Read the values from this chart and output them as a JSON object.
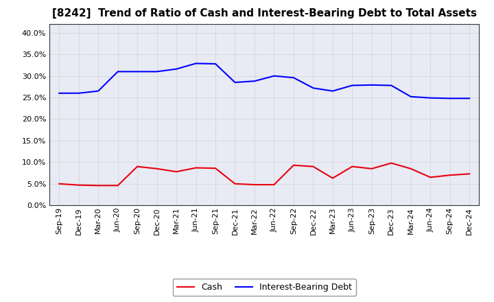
{
  "title": "[8242]  Trend of Ratio of Cash and Interest-Bearing Debt to Total Assets",
  "x_labels": [
    "Sep-19",
    "Dec-19",
    "Mar-20",
    "Jun-20",
    "Sep-20",
    "Dec-20",
    "Mar-21",
    "Jun-21",
    "Sep-21",
    "Dec-21",
    "Mar-22",
    "Jun-22",
    "Sep-22",
    "Dec-22",
    "Mar-23",
    "Jun-23",
    "Sep-23",
    "Dec-23",
    "Mar-24",
    "Jun-24",
    "Sep-24",
    "Dec-24"
  ],
  "cash": [
    0.05,
    0.047,
    0.046,
    0.046,
    0.09,
    0.085,
    0.078,
    0.087,
    0.086,
    0.05,
    0.048,
    0.048,
    0.093,
    0.09,
    0.063,
    0.09,
    0.085,
    0.098,
    0.085,
    0.065,
    0.07,
    0.073
  ],
  "ibd": [
    0.26,
    0.26,
    0.265,
    0.31,
    0.31,
    0.31,
    0.316,
    0.329,
    0.328,
    0.285,
    0.288,
    0.3,
    0.296,
    0.272,
    0.265,
    0.278,
    0.279,
    0.278,
    0.252,
    0.249,
    0.248,
    0.248
  ],
  "cash_color": "#e8000d",
  "ibd_color": "#0000ff",
  "grid_color": "#aaaaaa",
  "bg_color": "#ffffff",
  "plot_bg_color": "#e8eaf4",
  "ylim": [
    0.0,
    0.42
  ],
  "yticks": [
    0.0,
    0.05,
    0.1,
    0.15,
    0.2,
    0.25,
    0.3,
    0.35,
    0.4
  ],
  "legend_cash": "Cash",
  "legend_ibd": "Interest-Bearing Debt",
  "title_fontsize": 11,
  "axis_fontsize": 8,
  "legend_fontsize": 9
}
